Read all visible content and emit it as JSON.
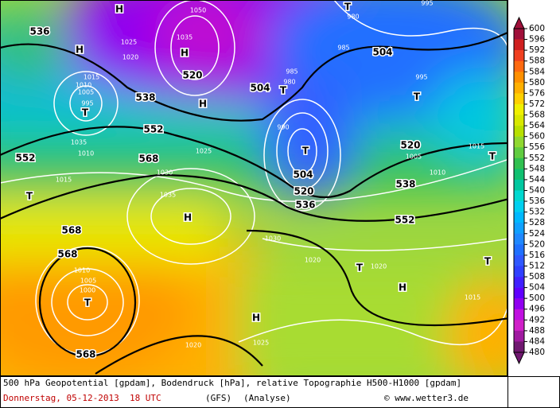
{
  "map": {
    "labels": [
      "536",
      "H",
      "1015",
      "1010",
      "1005",
      "995",
      "T",
      "538",
      "552",
      "552",
      "1035",
      "1010",
      "568",
      "1030",
      "1015",
      "T",
      "1035",
      "H",
      "568",
      "568",
      "1010",
      "1005",
      "1000",
      "T",
      "568",
      "1020",
      "1025",
      "H",
      "1030",
      "1020",
      "T",
      "1020",
      "H",
      "1015",
      "T",
      "552",
      "538",
      "520",
      "1005",
      "1010",
      "1015",
      "T",
      "T",
      "995",
      "504",
      "985",
      "T",
      "980",
      "H",
      "1050",
      "1035",
      "H",
      "520",
      "1020",
      "1025",
      "T",
      "980",
      "985",
      "504",
      "H",
      "T",
      "504",
      "520",
      "536",
      "1025",
      "990",
      "995"
    ]
  },
  "colorbar": {
    "ticks": [
      600,
      596,
      592,
      588,
      584,
      580,
      576,
      572,
      568,
      564,
      560,
      556,
      552,
      548,
      544,
      540,
      536,
      532,
      528,
      524,
      520,
      516,
      512,
      508,
      504,
      500,
      496,
      492,
      488,
      484,
      480
    ],
    "colors": [
      "#a0103a",
      "#d02020",
      "#f04020",
      "#ff6a10",
      "#ff9000",
      "#ffb000",
      "#ffd000",
      "#f0f000",
      "#d8e800",
      "#b8e000",
      "#90d830",
      "#60cc40",
      "#30c050",
      "#10c070",
      "#00c8a0",
      "#00d8d0",
      "#00d0f0",
      "#00b8ff",
      "#10a0ff",
      "#2088ff",
      "#2070ff",
      "#3058ff",
      "#3040ff",
      "#4020ff",
      "#6000ff",
      "#9000f0",
      "#c010e0",
      "#d020c8",
      "#a01aa0",
      "#701870"
    ]
  },
  "footer": {
    "line1": "500 hPa Geopotential [gpdam], Bodendruck [hPa], relative Topographie H500-H1000 [gpdam]",
    "date": "Donnerstag, 05-12-2013  18 UTC",
    "model": "(GFS)",
    "run": "(Analyse)",
    "credit": "© www.wetter3.de"
  }
}
